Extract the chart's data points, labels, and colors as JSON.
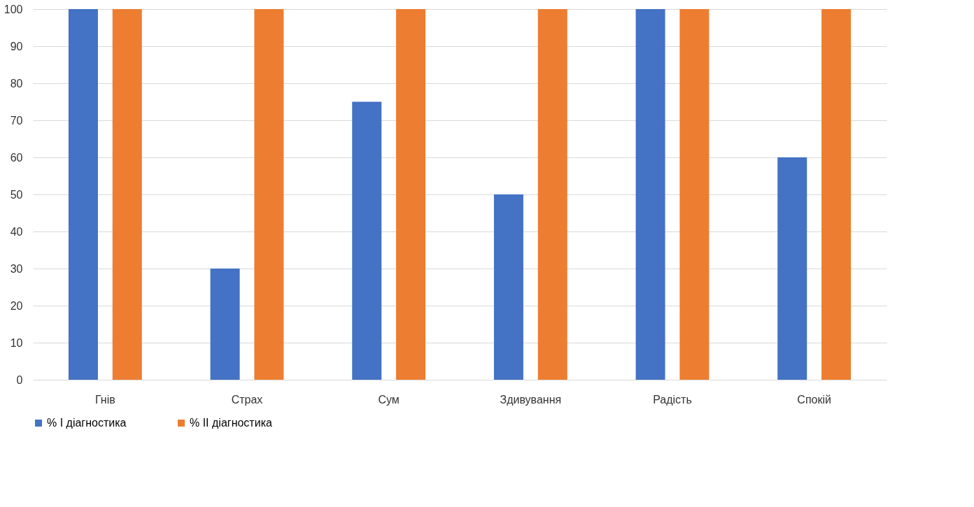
{
  "chart_data": {
    "type": "bar",
    "categories": [
      "Гнів",
      "Страх",
      "Сум",
      "Здивування",
      "Радість",
      "Спокій"
    ],
    "series": [
      {
        "name": "% I діагностика",
        "color": "#4472c4",
        "values": [
          100,
          30,
          75,
          50,
          100,
          60
        ]
      },
      {
        "name": "% II діагностика",
        "color": "#ed7d31",
        "values": [
          100,
          100,
          100,
          100,
          100,
          100
        ]
      }
    ],
    "ylim": [
      0,
      100
    ],
    "yticks": [
      0,
      10,
      20,
      30,
      40,
      50,
      60,
      70,
      80,
      90,
      100
    ],
    "grid": "y",
    "legend": "bottom"
  }
}
